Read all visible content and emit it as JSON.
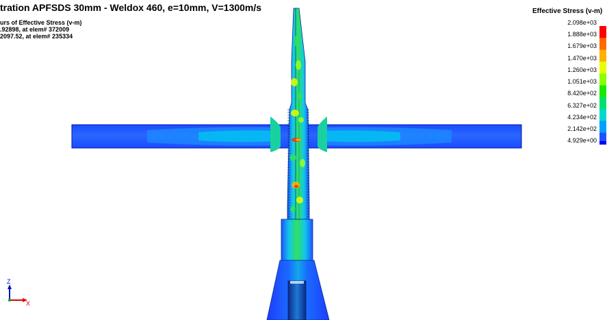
{
  "title": "tration APFSDS 30mm - Weldox 460, e=10mm, V=1300m/s",
  "info_lines": [
    "urs of Effective Stress (v-m)",
    ".92898, at elem# 372009",
    "2097.52, at elem# 235334"
  ],
  "legend": {
    "title": "Effective Stress (v-m)",
    "labels": [
      "2.098e+03",
      "1.888e+03",
      "1.679e+03",
      "1.470e+03",
      "1.260e+03",
      "1.051e+03",
      "8.420e+02",
      "6.327e+02",
      "4.234e+02",
      "2.142e+02",
      "4.929e+00"
    ],
    "colors": [
      "#ff0000",
      "#ff6a00",
      "#ffb000",
      "#e6ff00",
      "#8cff00",
      "#18e800",
      "#00e070",
      "#00d8c8",
      "#00a0ff",
      "#2050ff",
      "#0000ff"
    ]
  },
  "axes": {
    "z": "Z",
    "x": "X"
  },
  "colors": {
    "plate": "#1f53ff",
    "plate_edge": "#0018a8",
    "stress_cyan": "#00c8ff",
    "stress_green": "#00e070",
    "stress_yellow": "#e6ff00",
    "stress_red": "#ff2000"
  }
}
